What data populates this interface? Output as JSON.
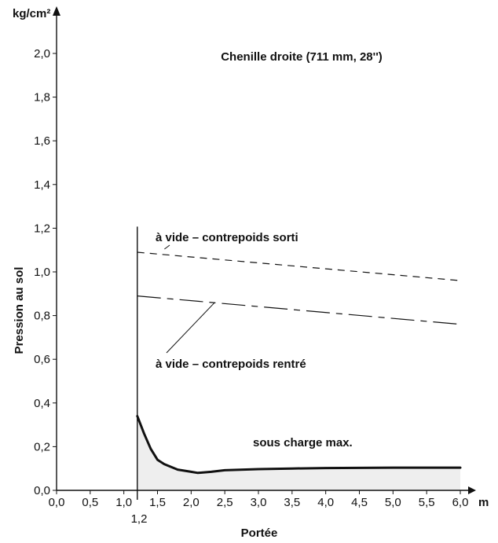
{
  "chart_data": {
    "type": "line",
    "title": "Chenille droite (711 mm, 28'')",
    "xlabel": "Portée",
    "ylabel": "Pression au sol",
    "x_unit": "m",
    "y_unit": "kg/cm²",
    "xlim": [
      0,
      6.0
    ],
    "ylim": [
      0,
      2.0
    ],
    "x_ticks": [
      0.0,
      0.5,
      1.0,
      1.5,
      2.0,
      2.5,
      3.0,
      3.5,
      4.0,
      4.5,
      5.0,
      5.5,
      6.0
    ],
    "x_tick_labels": [
      "0,0",
      "0,5",
      "1,0",
      "1,5",
      "2,0",
      "2,5",
      "3,0",
      "3,5",
      "4,0",
      "4,5",
      "5,0",
      "5,5",
      "6,0"
    ],
    "y_ticks": [
      0.0,
      0.2,
      0.4,
      0.6,
      0.8,
      1.0,
      1.2,
      1.4,
      1.6,
      1.8,
      2.0
    ],
    "y_tick_labels": [
      "0,0",
      "0,2",
      "0,4",
      "0,6",
      "0,8",
      "1,0",
      "1,2",
      "1,4",
      "1,6",
      "1,8",
      "2,0"
    ],
    "marker": {
      "x": 1.2,
      "label": "1,2",
      "y_top": 1.2
    },
    "grid": false,
    "series": [
      {
        "name": "à vide – contrepoids sorti",
        "style": "short-dash",
        "x": [
          1.2,
          6.0
        ],
        "y": [
          1.09,
          0.96
        ]
      },
      {
        "name": "à vide – contrepoids rentré",
        "style": "long-dash",
        "x": [
          1.2,
          6.0
        ],
        "y": [
          0.89,
          0.76
        ]
      },
      {
        "name": "sous charge max.",
        "style": "solid-filled",
        "x": [
          1.2,
          1.3,
          1.4,
          1.5,
          1.6,
          1.8,
          2.0,
          2.1,
          2.3,
          2.5,
          3.0,
          3.5,
          4.0,
          5.0,
          6.0
        ],
        "y": [
          0.34,
          0.26,
          0.19,
          0.14,
          0.12,
          0.095,
          0.085,
          0.08,
          0.085,
          0.092,
          0.097,
          0.1,
          0.102,
          0.104,
          0.104
        ]
      }
    ],
    "annotations": [
      {
        "text": "à vide – contrepoids sorti",
        "anchor_x": 1.3,
        "anchor_y": 1.09
      },
      {
        "text": "à vide – contrepoids rentré",
        "anchor_x": 2.35,
        "anchor_y": 0.86
      },
      {
        "text": "sous charge max.",
        "anchor_x": 3.25,
        "anchor_y": 0.1
      }
    ]
  }
}
